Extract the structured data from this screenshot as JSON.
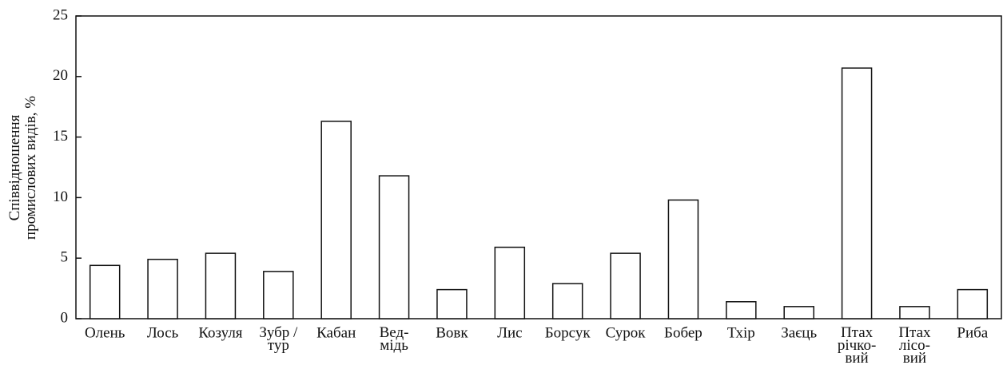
{
  "chart_data": {
    "type": "bar",
    "y_label": "Співвідношення\nпромислових видів, %",
    "categories": [
      "Олень",
      "Лось",
      "Козуля",
      "Зубр /\nтур",
      "Кабан",
      "Вед-\nмідь",
      "Вовк",
      "Лис",
      "Борсук",
      "Сурок",
      "Бобер",
      "Тхір",
      "Заєць",
      "Птах\nрічко-\nвий",
      "Птах\nлісо-\nвий",
      "Риба"
    ],
    "values": [
      4.4,
      4.9,
      5.4,
      3.9,
      16.3,
      11.8,
      2.4,
      5.9,
      2.9,
      5.4,
      9.8,
      1.4,
      1.0,
      20.7,
      1.0,
      2.4
    ],
    "color": "#ffffff",
    "ylim": [
      0,
      25
    ],
    "yticks": [
      0,
      5,
      10,
      15,
      20,
      25
    ],
    "grid": false
  }
}
